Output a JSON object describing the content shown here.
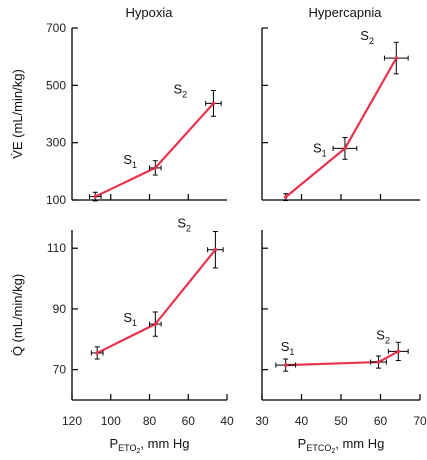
{
  "colors": {
    "series": "#e8344e",
    "axis": "#000000",
    "errorbar": "#000000",
    "text": "#111111"
  },
  "chart_data": [
    {
      "id": "hypoxia-ve",
      "type": "line",
      "title": "Hypoxia",
      "xlabel": "",
      "ylabel": "V̇E (mL/min/kg)",
      "xlim": [
        120,
        40
      ],
      "ylim": [
        100,
        700
      ],
      "xticks": [],
      "yticks": [
        100,
        300,
        500,
        700
      ],
      "points": [
        {
          "x": 108,
          "y": 112,
          "xerr": 3,
          "yerr": 15,
          "label": ""
        },
        {
          "x": 77,
          "y": 212,
          "xerr": 3,
          "yerr": 25,
          "label": "S1"
        },
        {
          "x": 47,
          "y": 437,
          "xerr": 4,
          "yerr": 45,
          "label": "S2"
        }
      ]
    },
    {
      "id": "hypercapnia-ve",
      "type": "line",
      "title": "Hypercapnia",
      "xlabel": "",
      "ylabel": "",
      "xlim": [
        30,
        70
      ],
      "ylim": [
        100,
        700
      ],
      "xticks": [],
      "yticks": [],
      "points": [
        {
          "x": 36,
          "y": 110,
          "xerr": 0,
          "yerr": 12,
          "label": ""
        },
        {
          "x": 51,
          "y": 280,
          "xerr": 3,
          "yerr": 38,
          "label": "S1"
        },
        {
          "x": 64,
          "y": 595,
          "xerr": 3,
          "yerr": 55,
          "label": "S2"
        }
      ]
    },
    {
      "id": "hypoxia-q",
      "type": "line",
      "title": "",
      "xlabel": "PETO2, mm Hg",
      "ylabel": "Q̇ (mL/min/kg)",
      "xlim": [
        120,
        40
      ],
      "ylim": [
        60,
        116
      ],
      "xticks": [
        120,
        100,
        80,
        60,
        40
      ],
      "yticks": [
        70,
        90,
        110
      ],
      "points": [
        {
          "x": 107,
          "y": 75.5,
          "xerr": 3,
          "yerr": 2.0,
          "label": ""
        },
        {
          "x": 77,
          "y": 85,
          "xerr": 3,
          "yerr": 4,
          "label": "S1"
        },
        {
          "x": 46,
          "y": 109.5,
          "xerr": 4,
          "yerr": 6,
          "label": "S2"
        }
      ]
    },
    {
      "id": "hypercapnia-q",
      "type": "line",
      "title": "",
      "xlabel": "PETCO2, mm Hg",
      "ylabel": "",
      "xlim": [
        30,
        70
      ],
      "ylim": [
        60,
        116
      ],
      "xticks": [
        30,
        40,
        50,
        60,
        70
      ],
      "yticks": [],
      "points": [
        {
          "x": 36,
          "y": 71.5,
          "xerr": 2.5,
          "yerr": 2.0,
          "label": "S1"
        },
        {
          "x": 59.5,
          "y": 72.5,
          "xerr": 2,
          "yerr": 2.0,
          "label": ""
        },
        {
          "x": 64.5,
          "y": 76,
          "xerr": 2.5,
          "yerr": 3.0,
          "label": "S2"
        }
      ]
    }
  ]
}
